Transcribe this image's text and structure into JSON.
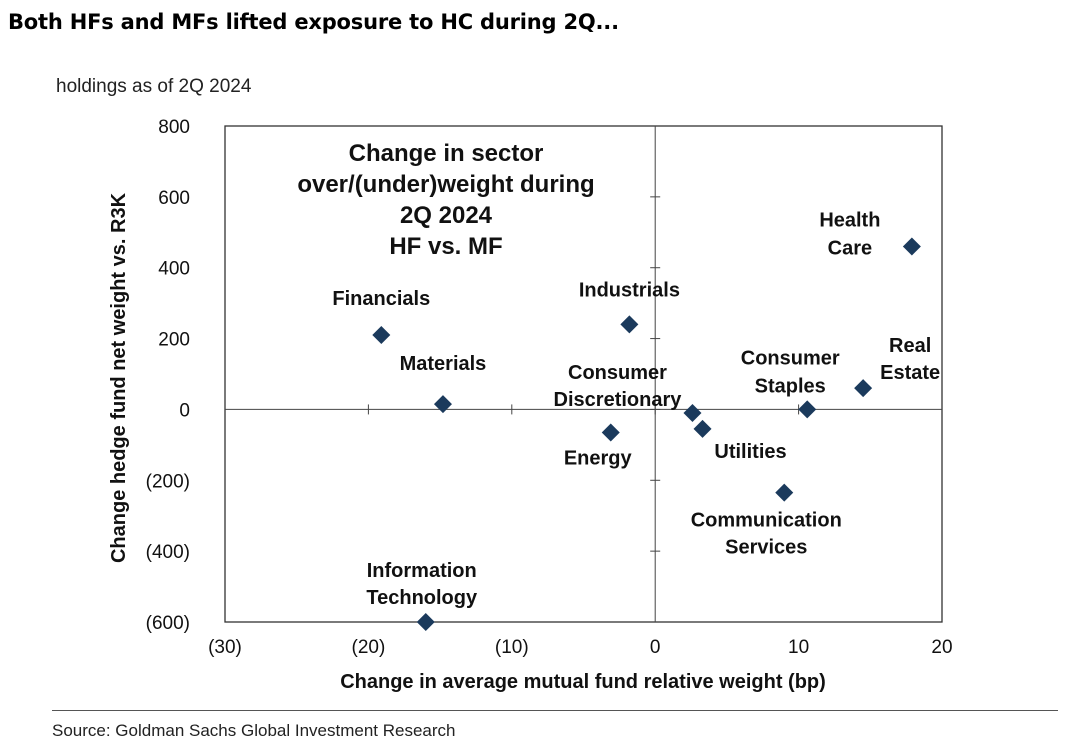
{
  "headline": "Both HFs and MFs lifted exposure to HC during 2Q...",
  "chart_data": {
    "type": "scatter",
    "subtitle": "holdings as of 2Q 2024",
    "title_lines": [
      "Change in sector",
      "over/(under)weight during",
      "2Q 2024",
      "HF vs. MF"
    ],
    "xlabel": "Change in average mutual fund relative weight (bp)",
    "ylabel": "Change  hedge fund net weight vs. R3K",
    "xlim": [
      -30,
      20
    ],
    "ylim": [
      -600,
      800
    ],
    "x_ticks": [
      {
        "value": -30,
        "label": "(30)"
      },
      {
        "value": -20,
        "label": "(20)"
      },
      {
        "value": -10,
        "label": "(10)"
      },
      {
        "value": 0,
        "label": "0"
      },
      {
        "value": 10,
        "label": "10"
      },
      {
        "value": 20,
        "label": "20"
      }
    ],
    "y_ticks": [
      {
        "value": 800,
        "label": "800"
      },
      {
        "value": 600,
        "label": "600"
      },
      {
        "value": 400,
        "label": "400"
      },
      {
        "value": 200,
        "label": "200"
      },
      {
        "value": 0,
        "label": "0"
      },
      {
        "value": -200,
        "label": "(200)"
      },
      {
        "value": -400,
        "label": "(400)"
      },
      {
        "value": -600,
        "label": "(600)"
      }
    ],
    "grid": false,
    "marker": "diamond",
    "marker_color": "#1b3a5c",
    "points": [
      {
        "label": [
          "Health",
          "Care"
        ],
        "x": 17.9,
        "y": 460
      },
      {
        "label": [
          "Real",
          "Estate"
        ],
        "x": 14.5,
        "y": 60
      },
      {
        "label": [
          "Consumer",
          "Staples"
        ],
        "x": 10.6,
        "y": 0
      },
      {
        "label": [
          "Industrials"
        ],
        "x": -1.8,
        "y": 240
      },
      {
        "label": [
          "Financials"
        ],
        "x": -19.1,
        "y": 210
      },
      {
        "label": [
          "Materials"
        ],
        "x": -14.8,
        "y": 15
      },
      {
        "label": [
          "Consumer",
          "Discretionary"
        ],
        "x": 2.6,
        "y": -10
      },
      {
        "label": [
          "Energy"
        ],
        "x": -3.1,
        "y": -65
      },
      {
        "label": [
          "Utilities"
        ],
        "x": 3.3,
        "y": -55
      },
      {
        "label": [
          "Communication",
          "Services"
        ],
        "x": 9.0,
        "y": -235
      },
      {
        "label": [
          "Information",
          "Technology"
        ],
        "x": -16.0,
        "y": -600
      }
    ]
  },
  "source": "Source: Goldman Sachs Global Investment Research"
}
